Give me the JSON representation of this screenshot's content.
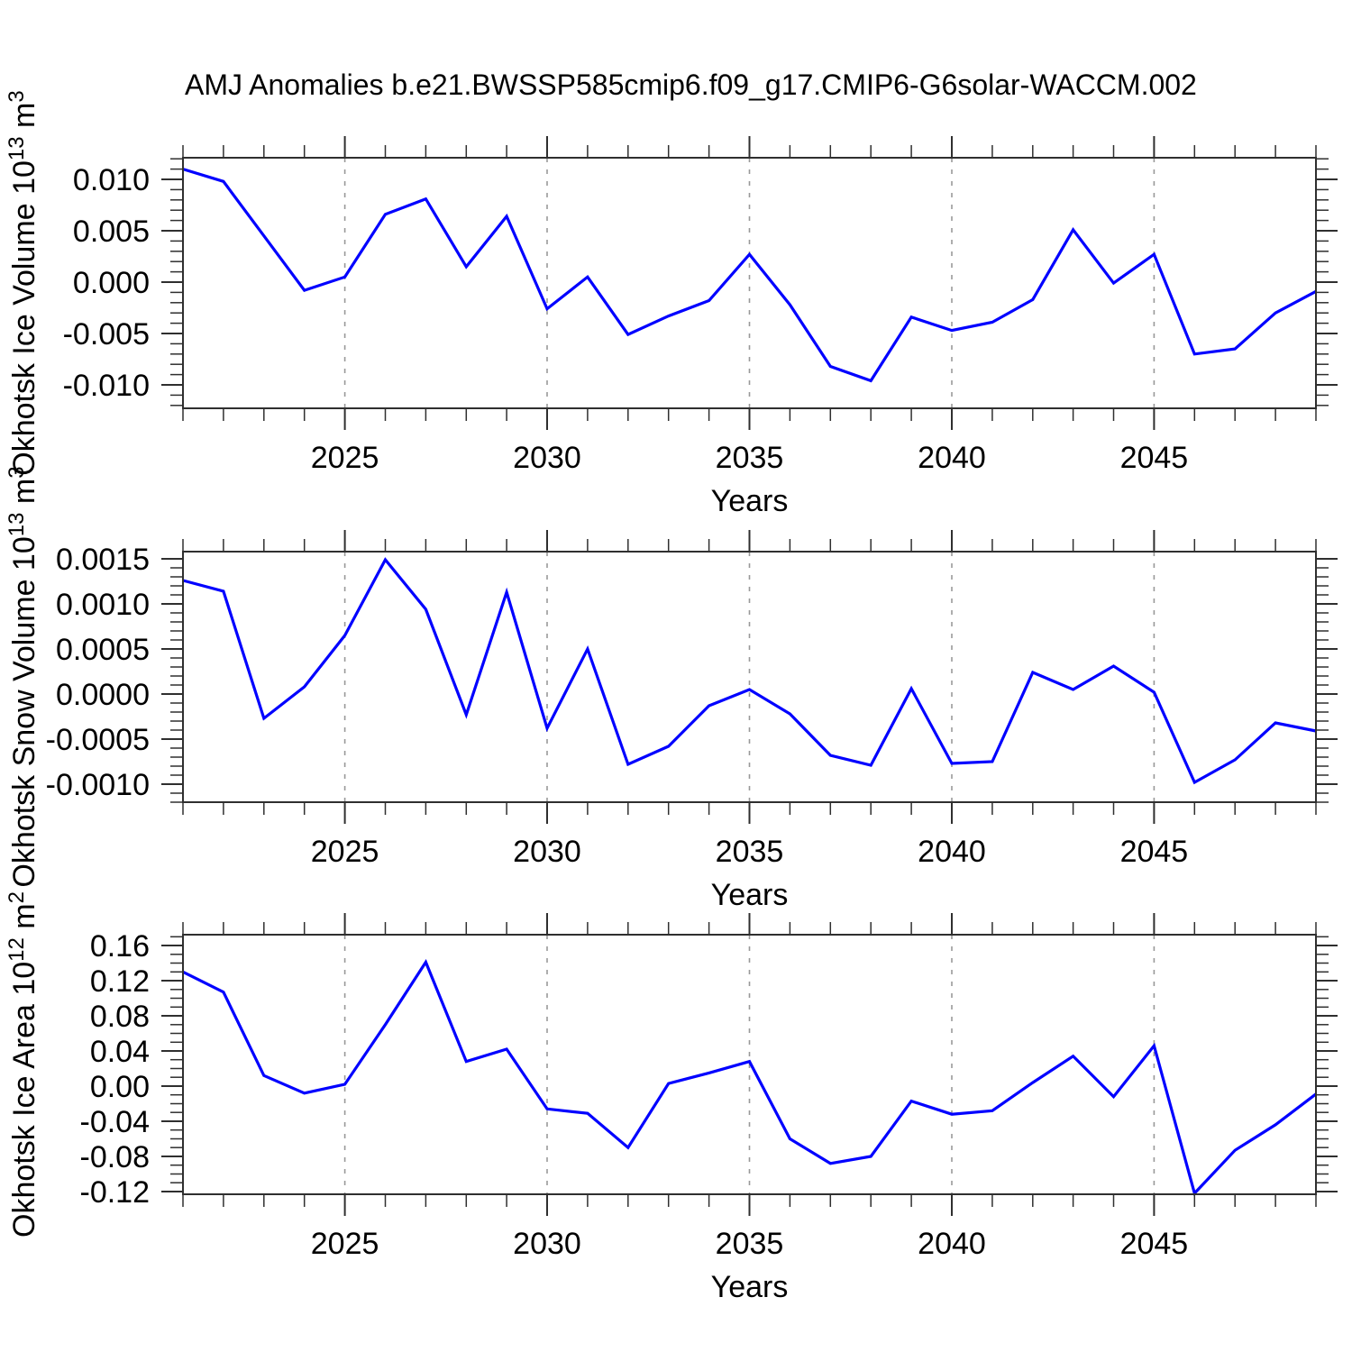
{
  "title": "AMJ Anomalies b.e21.BWSSP585cmip6.f09_g17.CMIP6-G6solar-WACCM.002",
  "colors": {
    "line": "#0000ff",
    "grid": "#999999",
    "axis": "#2f2f2f",
    "text": "#000000",
    "background": "#ffffff"
  },
  "chart_data": [
    {
      "type": "line",
      "panel": "ice-volume",
      "ylabel_parts": [
        {
          "t": "Okhotsk Ice Volume 10"
        },
        {
          "t": "13",
          "sup": true
        },
        {
          "t": " m"
        },
        {
          "t": "3",
          "sup": true
        }
      ],
      "xlabel": "Years",
      "years": [
        2021,
        2022,
        2023,
        2024,
        2025,
        2026,
        2027,
        2028,
        2029,
        2030,
        2031,
        2032,
        2033,
        2034,
        2035,
        2036,
        2037,
        2038,
        2039,
        2040,
        2041,
        2042,
        2043,
        2044,
        2045,
        2046,
        2047,
        2048,
        2049
      ],
      "values": [
        0.011,
        0.0098,
        0.0045,
        -0.0008,
        0.0005,
        0.0066,
        0.0081,
        0.0015,
        0.0064,
        -0.0026,
        0.0005,
        -0.0051,
        -0.0033,
        -0.0018,
        0.0027,
        -0.0022,
        -0.0082,
        -0.0096,
        -0.0034,
        -0.0047,
        -0.0039,
        -0.0017,
        0.0051,
        -0.0001,
        0.0027,
        -0.007,
        -0.0065,
        -0.003,
        -0.0009
      ],
      "xlim": [
        2021,
        2049
      ],
      "ylim": [
        -0.012281,
        0.012105
      ],
      "x_minor_step": 1,
      "xticks": {
        "values": [
          2025,
          2030,
          2035,
          2040,
          2045
        ],
        "labels": [
          "2025",
          "2030",
          "2035",
          "2040",
          "2045"
        ]
      },
      "grid_x": [
        2025,
        2030,
        2035,
        2040,
        2045
      ],
      "y_minor_step": 0.001,
      "yticks": {
        "values": [
          0.01,
          0.005,
          0.0,
          -0.005,
          -0.01
        ],
        "labels": [
          "0.010",
          "0.005",
          "0.000",
          "-0.005",
          "-0.010"
        ]
      },
      "grid_on": false,
      "legend": null
    },
    {
      "type": "line",
      "panel": "snow-volume",
      "ylabel_parts": [
        {
          "t": "Okhotsk Snow Volume 10"
        },
        {
          "t": "13",
          "sup": true
        },
        {
          "t": " m"
        },
        {
          "t": "3",
          "sup": true
        }
      ],
      "xlabel": "Years",
      "years": [
        2021,
        2022,
        2023,
        2024,
        2025,
        2026,
        2027,
        2028,
        2029,
        2030,
        2031,
        2032,
        2033,
        2034,
        2035,
        2036,
        2037,
        2038,
        2039,
        2040,
        2041,
        2042,
        2043,
        2044,
        2045,
        2046,
        2047,
        2048,
        2049
      ],
      "values": [
        0.00126,
        0.00114,
        -0.00027,
        8e-05,
        0.00065,
        0.00149,
        0.00094,
        -0.00023,
        0.00113,
        -0.00038,
        0.0005,
        -0.00078,
        -0.00058,
        -0.00013,
        5e-05,
        -0.00022,
        -0.00068,
        -0.00079,
        6e-05,
        -0.00077,
        -0.00075,
        0.00024,
        5e-05,
        0.00031,
        2e-05,
        -0.00098,
        -0.00073,
        -0.00032,
        -0.00041
      ],
      "xlim": [
        2021,
        2049
      ],
      "ylim": [
        -0.0012,
        0.00158
      ],
      "x_minor_step": 1,
      "xticks": {
        "values": [
          2025,
          2030,
          2035,
          2040,
          2045
        ],
        "labels": [
          "2025",
          "2030",
          "2035",
          "2040",
          "2045"
        ]
      },
      "grid_x": [
        2025,
        2030,
        2035,
        2040,
        2045
      ],
      "y_minor_step": 0.0001,
      "yticks": {
        "values": [
          0.0015,
          0.001,
          0.0005,
          0.0,
          -0.0005,
          -0.001
        ],
        "labels": [
          "0.0015",
          "0.0010",
          "0.0005",
          "0.0000",
          "-0.0005",
          "-0.0010"
        ]
      },
      "grid_on": false,
      "legend": null
    },
    {
      "type": "line",
      "panel": "ice-area",
      "ylabel_parts": [
        {
          "t": "Okhotsk Ice Area 10"
        },
        {
          "t": "12",
          "sup": true
        },
        {
          "t": " m"
        },
        {
          "t": "2",
          "sup": true
        }
      ],
      "xlabel": "Years",
      "years": [
        2021,
        2022,
        2023,
        2024,
        2025,
        2026,
        2027,
        2028,
        2029,
        2030,
        2031,
        2032,
        2033,
        2034,
        2035,
        2036,
        2037,
        2038,
        2039,
        2040,
        2041,
        2042,
        2043,
        2044,
        2045,
        2046,
        2047,
        2048,
        2049
      ],
      "values": [
        0.13,
        0.107,
        0.012,
        -0.008,
        0.002,
        0.07,
        0.141,
        0.028,
        0.042,
        -0.026,
        -0.031,
        -0.07,
        0.003,
        0.015,
        0.028,
        -0.06,
        -0.088,
        -0.08,
        -0.017,
        -0.032,
        -0.028,
        0.004,
        0.034,
        -0.012,
        0.046,
        -0.122,
        -0.073,
        -0.044,
        -0.009
      ],
      "xlim": [
        2021,
        2049
      ],
      "ylim": [
        -0.12308,
        0.17231
      ],
      "x_minor_step": 1,
      "xticks": {
        "values": [
          2025,
          2030,
          2035,
          2040,
          2045
        ],
        "labels": [
          "2025",
          "2030",
          "2035",
          "2040",
          "2045"
        ]
      },
      "grid_x": [
        2025,
        2030,
        2035,
        2040,
        2045
      ],
      "y_minor_step": 0.01,
      "yticks": {
        "values": [
          0.16,
          0.12,
          0.08,
          0.04,
          0.0,
          -0.04,
          -0.08,
          -0.12
        ],
        "labels": [
          "0.16",
          "0.12",
          "0.08",
          "0.04",
          "0.00",
          "-0.04",
          "-0.08",
          "-0.12"
        ]
      },
      "grid_on": false,
      "legend": null
    }
  ]
}
